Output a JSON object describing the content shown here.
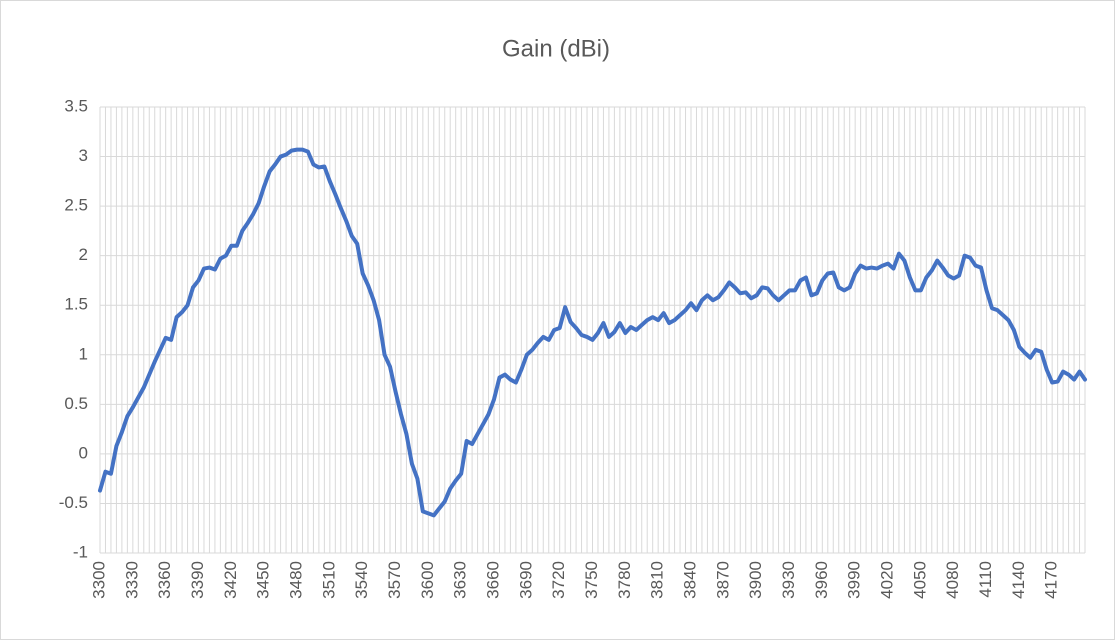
{
  "chart_data": {
    "type": "line",
    "title": "Gain (dBi)",
    "categories": [
      3300,
      null,
      null,
      null,
      null,
      null,
      3330,
      null,
      null,
      null,
      null,
      null,
      3360,
      null,
      null,
      null,
      null,
      null,
      3390,
      null,
      null,
      null,
      null,
      null,
      3420,
      null,
      null,
      null,
      null,
      null,
      3450,
      null,
      null,
      null,
      null,
      null,
      3480,
      null,
      null,
      null,
      null,
      null,
      3510,
      null,
      null,
      null,
      null,
      null,
      3540,
      null,
      null,
      null,
      null,
      null,
      3570,
      null,
      null,
      null,
      null,
      null,
      3600,
      null,
      null,
      null,
      null,
      null,
      3630,
      null,
      null,
      null,
      null,
      null,
      3660,
      null,
      null,
      null,
      null,
      null,
      3690,
      null,
      null,
      null,
      null,
      null,
      3720,
      null,
      null,
      null,
      null,
      null,
      3750,
      null,
      null,
      null,
      null,
      null,
      3780,
      null,
      null,
      null,
      null,
      null,
      3810,
      null,
      null,
      null,
      null,
      null,
      3840,
      null,
      null,
      null,
      null,
      null,
      3870,
      null,
      null,
      null,
      null,
      null,
      3900,
      null,
      null,
      null,
      null,
      null,
      3930,
      null,
      null,
      null,
      null,
      null,
      3960,
      null,
      null,
      null,
      null,
      null,
      3990,
      null,
      null,
      null,
      null,
      null,
      4020,
      null,
      null,
      null,
      null,
      null,
      4050,
      null,
      null,
      null,
      null,
      null,
      4080,
      null,
      null,
      null,
      null,
      null,
      4110,
      null,
      null,
      null,
      null,
      null,
      4140,
      null,
      null,
      null,
      null,
      null,
      4170,
      null,
      null,
      null,
      null,
      null,
      null
    ],
    "series": [
      {
        "name": "Gain (dBi)",
        "color": "#4472c4",
        "values": [
          -0.37,
          -0.18,
          -0.2,
          0.08,
          0.22,
          0.38,
          0.47,
          0.57,
          0.67,
          0.8,
          0.93,
          1.05,
          1.17,
          1.15,
          1.38,
          1.43,
          1.5,
          1.68,
          1.75,
          1.87,
          1.88,
          1.86,
          1.97,
          2.0,
          2.1,
          2.1,
          2.25,
          2.33,
          2.42,
          2.53,
          2.7,
          2.85,
          2.92,
          3.0,
          3.02,
          3.06,
          3.07,
          3.07,
          3.05,
          2.92,
          2.89,
          2.9,
          2.75,
          2.62,
          2.48,
          2.35,
          2.2,
          2.12,
          1.82,
          1.7,
          1.55,
          1.35,
          1.0,
          0.88,
          0.63,
          0.4,
          0.2,
          -0.1,
          -0.25,
          -0.58,
          -0.6,
          -0.62,
          -0.55,
          -0.48,
          -0.35,
          -0.27,
          -0.2,
          0.13,
          0.1,
          0.2,
          0.3,
          0.4,
          0.55,
          0.77,
          0.8,
          0.75,
          0.72,
          0.85,
          1.0,
          1.05,
          1.12,
          1.18,
          1.15,
          1.25,
          1.27,
          1.48,
          1.33,
          1.27,
          1.2,
          1.18,
          1.15,
          1.22,
          1.32,
          1.18,
          1.23,
          1.32,
          1.22,
          1.28,
          1.25,
          1.3,
          1.35,
          1.38,
          1.35,
          1.42,
          1.32,
          1.35,
          1.4,
          1.45,
          1.52,
          1.45,
          1.55,
          1.6,
          1.55,
          1.58,
          1.65,
          1.73,
          1.68,
          1.62,
          1.63,
          1.57,
          1.6,
          1.68,
          1.67,
          1.6,
          1.55,
          1.6,
          1.65,
          1.65,
          1.75,
          1.78,
          1.6,
          1.62,
          1.75,
          1.82,
          1.83,
          1.68,
          1.65,
          1.68,
          1.82,
          1.9,
          1.87,
          1.88,
          1.87,
          1.9,
          1.92,
          1.87,
          2.02,
          1.95,
          1.78,
          1.65,
          1.65,
          1.78,
          1.85,
          1.95,
          1.88,
          1.8,
          1.77,
          1.8,
          2.0,
          1.98,
          1.9,
          1.88,
          1.65,
          1.47,
          1.45,
          1.4,
          1.35,
          1.25,
          1.08,
          1.02,
          0.97,
          1.05,
          1.03,
          0.85,
          0.72,
          0.73,
          0.83,
          0.8,
          0.75,
          0.83,
          0.75
        ]
      }
    ],
    "ylim": [
      -1,
      3.5
    ],
    "yticks": [
      -1,
      -0.5,
      0,
      0.5,
      1,
      1.5,
      2,
      2.5,
      3,
      3.5
    ],
    "grid": true
  }
}
